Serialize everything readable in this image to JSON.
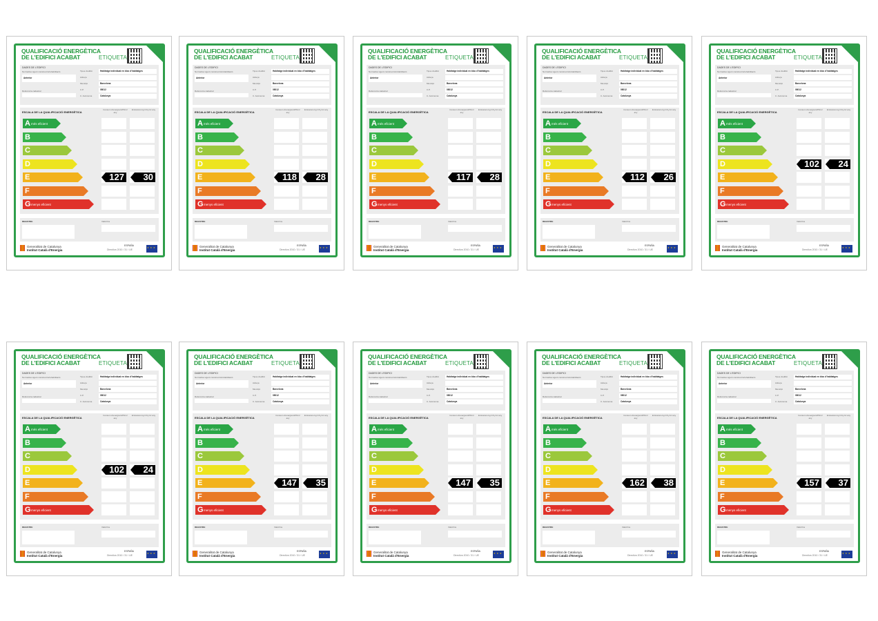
{
  "label_text": {
    "title_line1": "QUALIFICACIÓ ENERGÈTICA",
    "title_line2": "DE L'EDIFICI ACABAT",
    "etiqueta": "ETIQUETA",
    "dades_header": "DADES DE L'EDIFICI",
    "normativa": "Normativa vigent construcció/rehabilitació",
    "anterior": "Anterior",
    "referencia": "Referència cadastral",
    "tipus_label": "Tipus d'edifici",
    "adreca_label": "Adreça",
    "municipi_label": "Municipi",
    "cp_label": "C.P.",
    "ca_label": "C. Autònoma",
    "tipus_value": "Habitatge individual en bloc d'habitatges",
    "municipi_value": "Barcelona",
    "cp_value": "08012",
    "ca_value": "Catalunya",
    "escala_header": "ESCALA DE LA QUALIFICACIÓ ENERGÈTICA",
    "consum_header": "Consum d'energia kWh/m² any",
    "emissions_header": "Emissions kg CO₂/m² any",
    "registre": "REGISTRE",
    "valid_fins": "Vàlid fins",
    "gen1": "Generalitat de Catalunya",
    "gen2": "Institut Català d'Energia",
    "espanya": "ESPAÑA",
    "directiva": "Directiva 2010 / 31 / UE",
    "top_band_text": "més eficient",
    "bottom_band_text": "menys eficient"
  },
  "bands": [
    {
      "letter": "A",
      "color": "#2aa646"
    },
    {
      "letter": "B",
      "color": "#37b34a"
    },
    {
      "letter": "C",
      "color": "#9bc83c"
    },
    {
      "letter": "D",
      "color": "#ede41f"
    },
    {
      "letter": "E",
      "color": "#f2b21c"
    },
    {
      "letter": "F",
      "color": "#e97a26"
    },
    {
      "letter": "G",
      "color": "#e0322a"
    }
  ],
  "labels": [
    {
      "consum": "127",
      "emissions": "30",
      "rating": "E"
    },
    {
      "consum": "118",
      "emissions": "28",
      "rating": "E"
    },
    {
      "consum": "117",
      "emissions": "28",
      "rating": "E"
    },
    {
      "consum": "112",
      "emissions": "26",
      "rating": "E"
    },
    {
      "consum": "102",
      "emissions": "24",
      "rating": "D"
    },
    {
      "consum": "102",
      "emissions": "24",
      "rating": "D"
    },
    {
      "consum": "147",
      "emissions": "35",
      "rating": "E"
    },
    {
      "consum": "147",
      "emissions": "35",
      "rating": "E"
    },
    {
      "consum": "162",
      "emissions": "38",
      "rating": "E"
    },
    {
      "consum": "157",
      "emissions": "37",
      "rating": "E"
    }
  ]
}
